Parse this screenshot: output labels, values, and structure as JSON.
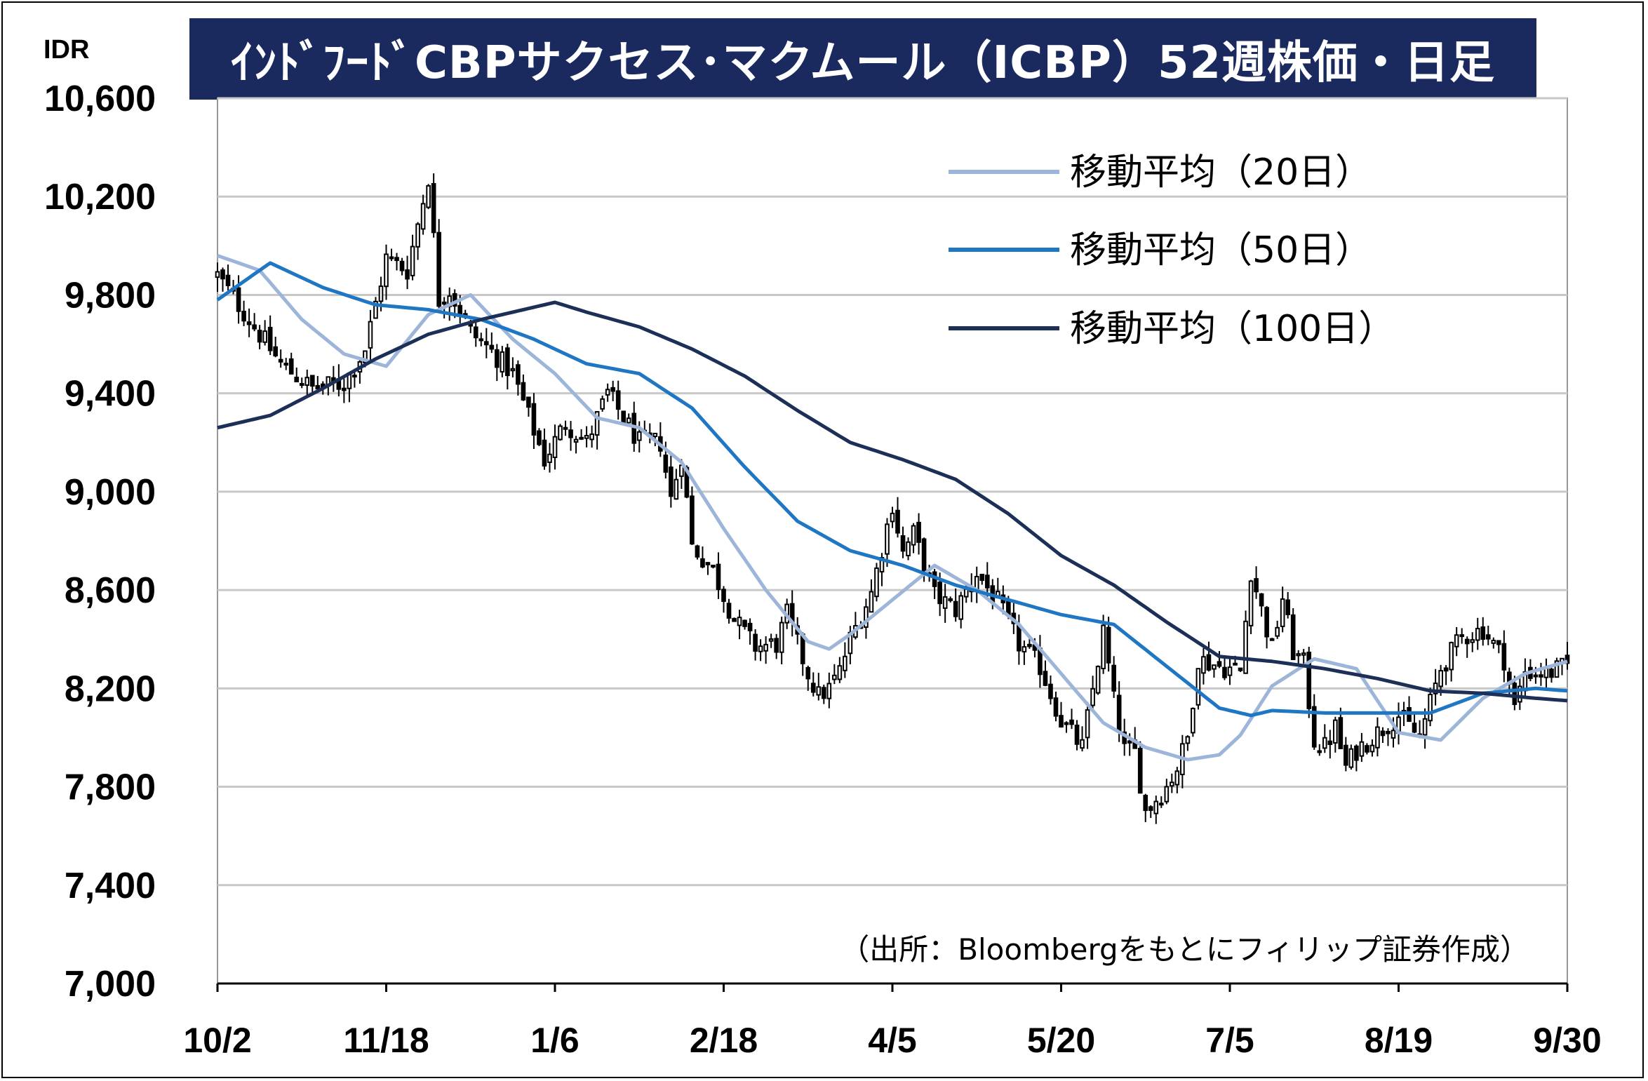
{
  "title": "ｲﾝﾄﾞﾌｰﾄﾞCBPサクセス･マクムール（ICBP）52週株価・日足",
  "unit_label": "IDR",
  "source_note": "（出所：Bloombergをもとにフィリップ証券作成）",
  "colors": {
    "title_bg": "#1b2a5e",
    "ma20": "#9db5d8",
    "ma50": "#1f77c4",
    "ma100": "#1b2f57",
    "grid": "#c8c8c8",
    "candle": "#000000"
  },
  "chart_data": {
    "type": "line",
    "ylim": [
      7000,
      10600
    ],
    "yticks": [
      7000,
      7400,
      7800,
      8200,
      8600,
      9000,
      9400,
      9800,
      10200,
      10600
    ],
    "ytick_labels": [
      "7,000",
      "7,400",
      "7,800",
      "8,200",
      "8,600",
      "9,000",
      "9,400",
      "9,800",
      "10,200",
      "10,600"
    ],
    "x_tick_labels": [
      "10/2",
      "11/18",
      "1/6",
      "2/18",
      "4/5",
      "5/20",
      "7/5",
      "8/19",
      "9/30"
    ],
    "x_tick_index": [
      0,
      32,
      64,
      96,
      128,
      160,
      192,
      224,
      256
    ],
    "n_days": 257,
    "grid": true,
    "legend_position": "top-right",
    "series": [
      {
        "name": "移動平均（20日）",
        "color_key": "ma20",
        "x": [
          0,
          8,
          16,
          24,
          32,
          40,
          48,
          56,
          64,
          72,
          80,
          88,
          96,
          104,
          112,
          116,
          120,
          128,
          136,
          144,
          152,
          160,
          168,
          176,
          184,
          190,
          194,
          200,
          208,
          216,
          224,
          232,
          240,
          248,
          256
        ],
        "values": [
          9960,
          9900,
          9700,
          9560,
          9510,
          9720,
          9800,
          9620,
          9480,
          9300,
          9260,
          9120,
          8850,
          8600,
          8390,
          8360,
          8420,
          8560,
          8700,
          8600,
          8460,
          8260,
          8060,
          7960,
          7910,
          7930,
          8010,
          8210,
          8320,
          8280,
          8020,
          7990,
          8160,
          8260,
          8310
        ]
      },
      {
        "name": "移動平均（50日）",
        "color_key": "ma50",
        "x": [
          0,
          10,
          20,
          30,
          40,
          50,
          60,
          70,
          80,
          90,
          100,
          110,
          120,
          130,
          140,
          150,
          160,
          170,
          180,
          190,
          196,
          200,
          210,
          220,
          230,
          240,
          250,
          256
        ],
        "values": [
          9780,
          9930,
          9830,
          9760,
          9740,
          9700,
          9620,
          9520,
          9480,
          9340,
          9100,
          8880,
          8760,
          8700,
          8620,
          8560,
          8500,
          8460,
          8290,
          8120,
          8090,
          8110,
          8100,
          8100,
          8100,
          8180,
          8200,
          8190
        ]
      },
      {
        "name": "移動平均（100日）",
        "color_key": "ma100",
        "x": [
          0,
          10,
          20,
          30,
          40,
          50,
          60,
          64,
          70,
          80,
          90,
          100,
          110,
          120,
          130,
          140,
          150,
          160,
          170,
          180,
          190,
          200,
          210,
          220,
          230,
          240,
          250,
          256
        ],
        "values": [
          9260,
          9310,
          9420,
          9540,
          9640,
          9700,
          9750,
          9770,
          9730,
          9670,
          9580,
          9470,
          9330,
          9200,
          9130,
          9050,
          8910,
          8740,
          8620,
          8470,
          8330,
          8310,
          8280,
          8240,
          8190,
          8180,
          8160,
          8150
        ]
      }
    ],
    "candles_anchor_close": {
      "x": [
        0,
        6,
        12,
        18,
        24,
        28,
        32,
        36,
        40,
        42,
        44,
        48,
        52,
        56,
        60,
        62,
        66,
        70,
        74,
        80,
        84,
        86,
        88,
        90,
        94,
        98,
        102,
        106,
        108,
        110,
        112,
        114,
        116,
        118,
        120,
        124,
        128,
        130,
        132,
        136,
        140,
        144,
        148,
        152,
        156,
        160,
        164,
        168,
        170,
        172,
        174,
        176,
        180,
        182,
        184,
        186,
        190,
        194,
        196,
        200,
        202,
        204,
        206,
        208,
        210,
        212,
        214,
        216,
        220,
        224,
        228,
        232,
        236,
        240,
        244,
        246,
        248,
        252,
        256
      ],
      "values": [
        9880,
        9700,
        9520,
        9420,
        9440,
        9580,
        9950,
        9900,
        10280,
        9780,
        9820,
        9650,
        9570,
        9480,
        9250,
        9130,
        9280,
        9200,
        9400,
        9200,
        9200,
        8970,
        9150,
        8780,
        8680,
        8480,
        8370,
        8380,
        8500,
        8380,
        8260,
        8170,
        8200,
        8270,
        8400,
        8590,
        8950,
        8750,
        8830,
        8580,
        8520,
        8670,
        8550,
        8380,
        8290,
        8070,
        7960,
        8430,
        8150,
        7950,
        7940,
        7700,
        7800,
        7880,
        8000,
        8320,
        8290,
        8270,
        8680,
        8360,
        8570,
        8350,
        8300,
        7990,
        7960,
        8040,
        7880,
        7950,
        8020,
        8090,
        8000,
        8280,
        8410,
        8440,
        8320,
        8120,
        8270,
        8260,
        8290
      ]
    }
  }
}
